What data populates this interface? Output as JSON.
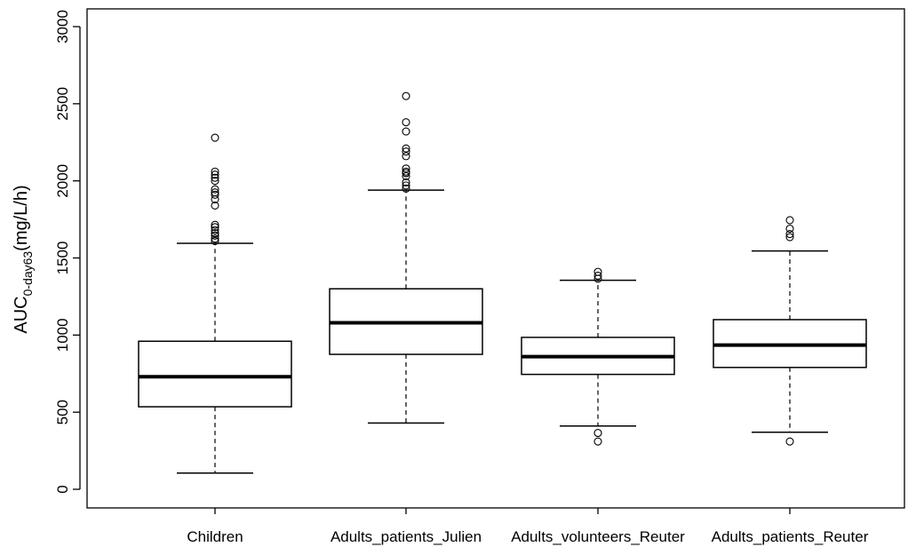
{
  "chart_data": {
    "type": "boxplot",
    "ylabel": {
      "main": "AUC",
      "subscript": "0-day63",
      "unit": "(mg/L/h)"
    },
    "ylim": [
      -120,
      3120
    ],
    "yticks": [
      0,
      500,
      1000,
      1500,
      2000,
      2500,
      3000
    ],
    "grid": false,
    "legend": "none",
    "categories": [
      "Children",
      "Adults_patients_Julien",
      "Adults_volunteers_Reuter",
      "Adults_patients_Reuter"
    ],
    "boxes": [
      {
        "name": "Children",
        "whisker_low": 105,
        "q1": 535,
        "median": 730,
        "q3": 960,
        "whisker_high": 1595,
        "outliers": [
          1610,
          1625,
          1645,
          1660,
          1680,
          1700,
          1715,
          1840,
          1880,
          1910,
          1925,
          1945,
          2000,
          2020,
          2040,
          2060,
          2280
        ]
      },
      {
        "name": "Adults_patients_Julien",
        "whisker_low": 430,
        "q1": 875,
        "median": 1080,
        "q3": 1300,
        "whisker_high": 1940,
        "outliers": [
          1950,
          1970,
          1990,
          2030,
          2050,
          2060,
          2080,
          2160,
          2190,
          2210,
          2320,
          2380,
          2550
        ]
      },
      {
        "name": "Adults_volunteers_Reuter",
        "whisker_low": 410,
        "q1": 745,
        "median": 860,
        "q3": 985,
        "whisker_high": 1355,
        "outliers": [
          310,
          365,
          1365,
          1385,
          1410
        ]
      },
      {
        "name": "Adults_patients_Reuter",
        "whisker_low": 370,
        "q1": 790,
        "median": 935,
        "q3": 1100,
        "whisker_high": 1545,
        "outliers": [
          310,
          1635,
          1655,
          1690,
          1745
        ]
      }
    ]
  }
}
